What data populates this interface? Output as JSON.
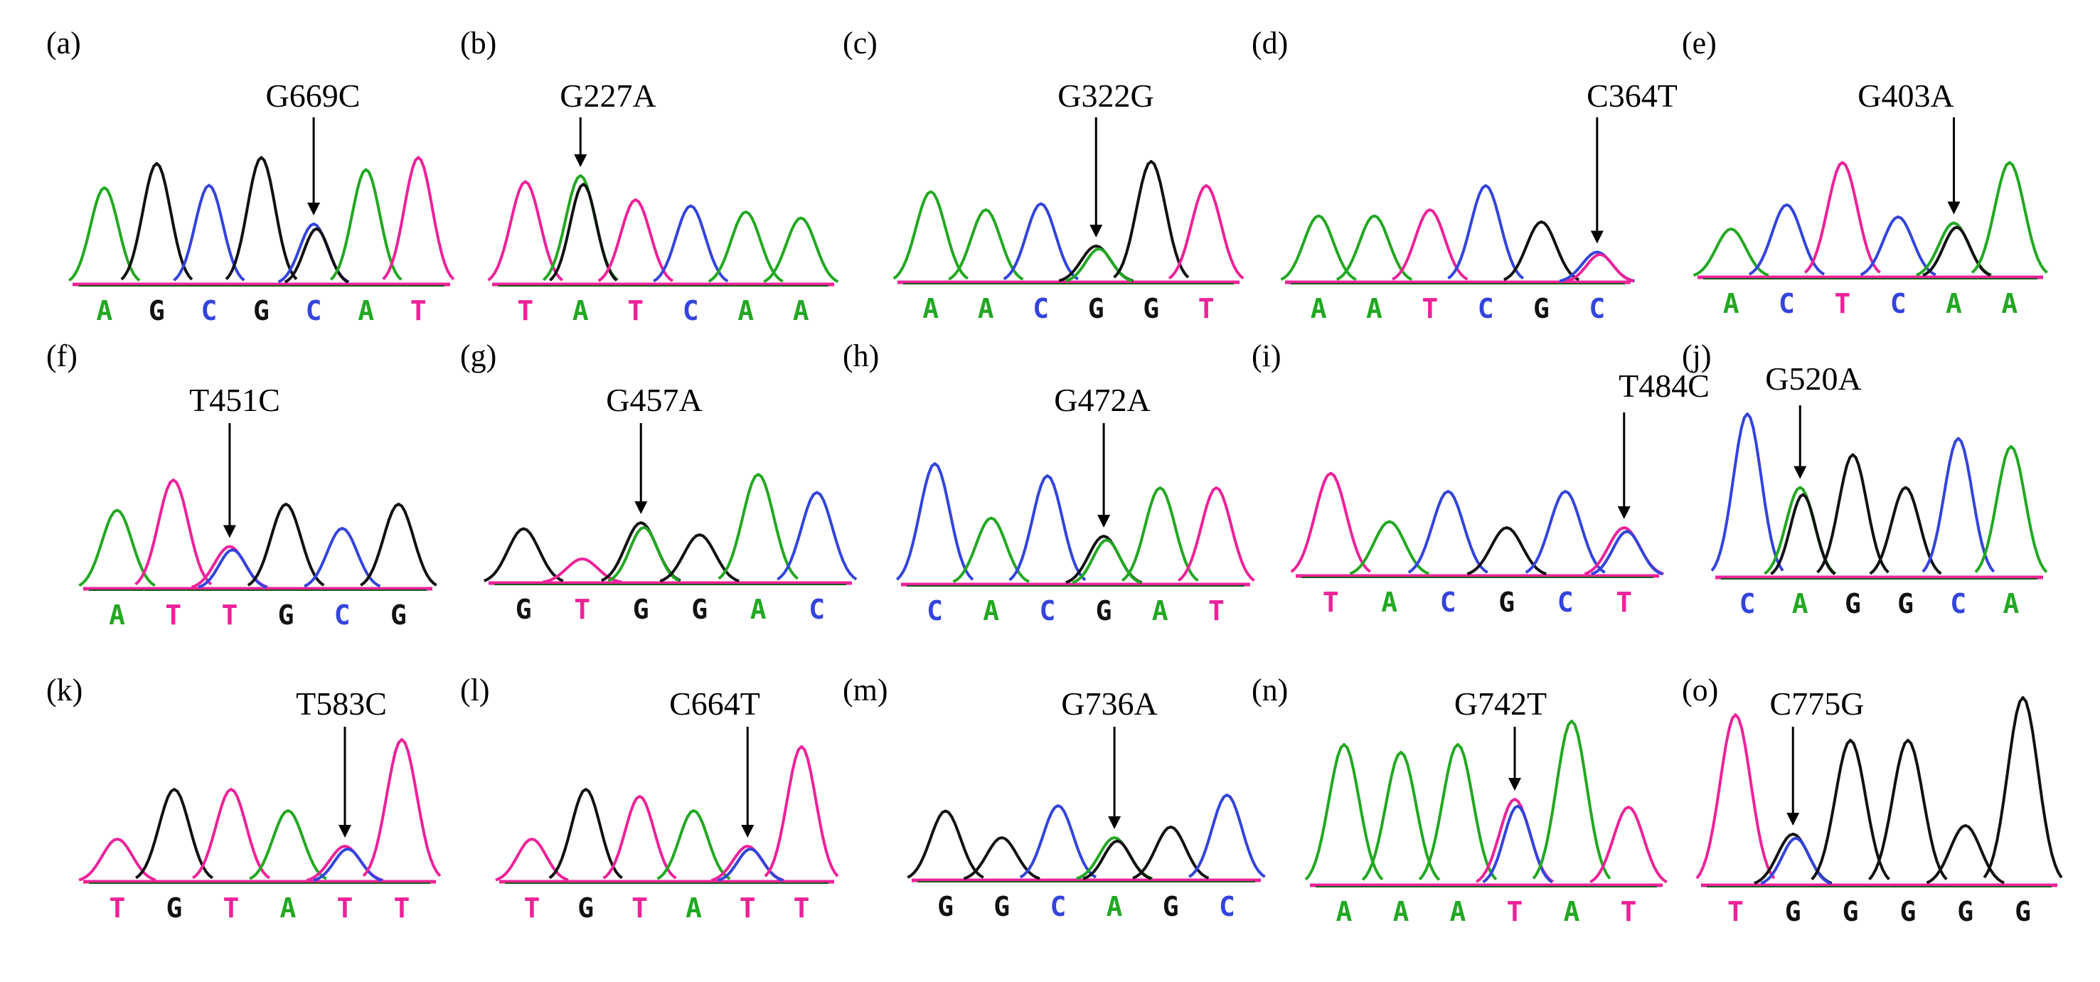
{
  "colors": {
    "A": "#22a822",
    "C": "#3344dd",
    "G": "#111111",
    "T": "#ee2299"
  },
  "panels": [
    {
      "id": "(a)",
      "mutation": "G669C",
      "bases": [
        "A",
        "G",
        "C",
        "G",
        "C",
        "A",
        "T"
      ],
      "peaks": [
        0.8,
        1.0,
        0.82,
        1.05,
        0.5,
        0.95,
        1.05
      ],
      "secondary": [
        null,
        null,
        null,
        null,
        "G",
        null,
        null
      ],
      "site": 4
    },
    {
      "id": "(b)",
      "mutation": "G227A",
      "bases": [
        "T",
        "A",
        "T",
        "C",
        "A",
        "A"
      ],
      "peaks": [
        0.85,
        0.9,
        0.7,
        0.65,
        0.6,
        0.55
      ],
      "secondary": [
        null,
        "G",
        null,
        null,
        null,
        null
      ],
      "site": 1
    },
    {
      "id": "(c)",
      "mutation": "G322G",
      "bases": [
        "A",
        "A",
        "C",
        "G",
        "G",
        "T"
      ],
      "peaks": [
        0.75,
        0.6,
        0.65,
        0.3,
        1.0,
        0.8
      ],
      "secondary": [
        null,
        null,
        null,
        "A",
        null,
        null
      ],
      "site": 3
    },
    {
      "id": "(d)",
      "mutation": "C364T",
      "bases": [
        "A",
        "A",
        "T",
        "C",
        "G",
        "C"
      ],
      "peaks": [
        0.55,
        0.55,
        0.6,
        0.8,
        0.5,
        0.25
      ],
      "secondary": [
        null,
        null,
        null,
        null,
        null,
        "T"
      ],
      "site": 5
    },
    {
      "id": "(e)",
      "mutation": "G403A",
      "bases": [
        "A",
        "C",
        "T",
        "C",
        "A",
        "A"
      ],
      "peaks": [
        0.4,
        0.6,
        0.95,
        0.5,
        0.45,
        0.95
      ],
      "secondary": [
        null,
        null,
        null,
        null,
        "G",
        null
      ],
      "site": 4
    },
    {
      "id": "(f)",
      "mutation": "T451C",
      "bases": [
        "A",
        "T",
        "T",
        "G",
        "C",
        "G"
      ],
      "peaks": [
        0.65,
        0.9,
        0.35,
        0.7,
        0.5,
        0.7
      ],
      "secondary": [
        null,
        null,
        "C",
        null,
        null,
        null
      ],
      "site": 2
    },
    {
      "id": "(g)",
      "mutation": "G457A",
      "bases": [
        "G",
        "T",
        "G",
        "G",
        "A",
        "C"
      ],
      "peaks": [
        0.45,
        0.2,
        0.5,
        0.4,
        0.9,
        0.75
      ],
      "secondary": [
        null,
        null,
        "A",
        null,
        null,
        null
      ],
      "site": 2
    },
    {
      "id": "(h)",
      "mutation": "G472A",
      "bases": [
        "C",
        "A",
        "C",
        "G",
        "A",
        "T"
      ],
      "peaks": [
        1.0,
        0.55,
        0.9,
        0.4,
        0.8,
        0.8
      ],
      "secondary": [
        null,
        null,
        null,
        "A",
        null,
        null
      ],
      "site": 3
    },
    {
      "id": "(i)",
      "mutation": "T484C",
      "bases": [
        "T",
        "A",
        "C",
        "G",
        "C",
        "T"
      ],
      "peaks": [
        0.85,
        0.45,
        0.7,
        0.4,
        0.7,
        0.4
      ],
      "secondary": [
        null,
        null,
        null,
        null,
        null,
        "C"
      ],
      "site": 5
    },
    {
      "id": "(j)",
      "mutation": "G520A",
      "bases": [
        "C",
        "A",
        "G",
        "G",
        "C",
        "A"
      ],
      "peaks": [
        1.0,
        0.55,
        0.75,
        0.55,
        0.85,
        0.8
      ],
      "secondary": [
        null,
        "G",
        null,
        null,
        null,
        null
      ],
      "site": 1
    },
    {
      "id": "(k)",
      "mutation": "T583C",
      "bases": [
        "T",
        "G",
        "T",
        "A",
        "T",
        "T"
      ],
      "peaks": [
        0.3,
        0.65,
        0.65,
        0.5,
        0.25,
        1.0
      ],
      "secondary": [
        null,
        null,
        null,
        null,
        "C",
        null
      ],
      "site": 4
    },
    {
      "id": "(l)",
      "mutation": "C664T",
      "bases": [
        "T",
        "G",
        "T",
        "A",
        "T",
        "T"
      ],
      "peaks": [
        0.3,
        0.65,
        0.6,
        0.5,
        0.25,
        0.95
      ],
      "secondary": [
        null,
        null,
        null,
        null,
        "C",
        null
      ],
      "site": 4
    },
    {
      "id": "(m)",
      "mutation": "G736A",
      "bases": [
        "G",
        "G",
        "C",
        "A",
        "G",
        "C"
      ],
      "peaks": [
        0.65,
        0.4,
        0.7,
        0.4,
        0.5,
        0.8
      ],
      "secondary": [
        null,
        null,
        null,
        "G",
        null,
        null
      ],
      "site": 3
    },
    {
      "id": "(n)",
      "mutation": "G742T",
      "bases": [
        "A",
        "A",
        "A",
        "T",
        "A",
        "T"
      ],
      "peaks": [
        0.9,
        0.85,
        0.9,
        0.55,
        1.05,
        0.5
      ],
      "secondary": [
        null,
        null,
        null,
        "C",
        null,
        null
      ],
      "site": 3
    },
    {
      "id": "(o)",
      "mutation": "C775G",
      "bases": [
        "T",
        "G",
        "G",
        "G",
        "G",
        "G"
      ],
      "peaks": [
        1.0,
        0.3,
        0.85,
        0.85,
        0.35,
        1.1
      ],
      "secondary": [
        null,
        "C",
        null,
        null,
        null,
        null
      ],
      "site": 1
    }
  ]
}
